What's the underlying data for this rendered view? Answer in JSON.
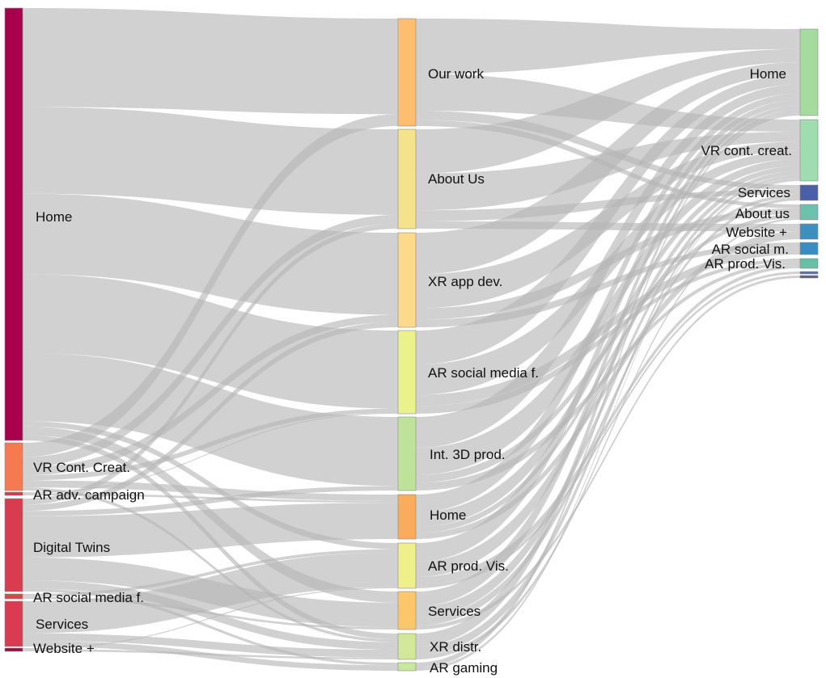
{
  "chart_data": {
    "type": "sankey",
    "nodes": [
      {
        "id": "s_home",
        "label": "Home",
        "column": 0,
        "color": "#a8004a"
      },
      {
        "id": "s_vrcc",
        "label": "VR Cont. Creat.",
        "column": 0,
        "color": "#f57a4f"
      },
      {
        "id": "s_aradv",
        "label": "AR adv. campaign",
        "column": 0,
        "color": "#d9364b"
      },
      {
        "id": "s_dt",
        "label": "Digital Twins",
        "column": 0,
        "color": "#d93b4f"
      },
      {
        "id": "s_arsm",
        "label": "AR social media f.",
        "column": 0,
        "color": "#d64a44"
      },
      {
        "id": "s_serv",
        "label": "Services",
        "column": 0,
        "color": "#da3b52"
      },
      {
        "id": "s_web",
        "label": "Website +",
        "column": 0,
        "color": "#9c0a43"
      },
      {
        "id": "m_work",
        "label": "Our work",
        "column": 1,
        "color": "#fdbf6f"
      },
      {
        "id": "m_about",
        "label": "About Us",
        "column": 1,
        "color": "#f5e38c"
      },
      {
        "id": "m_xrapp",
        "label": "XR app dev.",
        "column": 1,
        "color": "#fdd98c"
      },
      {
        "id": "m_arsm",
        "label": "AR social media f.",
        "column": 1,
        "color": "#eaf28c"
      },
      {
        "id": "m_int3d",
        "label": "Int. 3D prod.",
        "column": 1,
        "color": "#bfe29a"
      },
      {
        "id": "m_home",
        "label": "Home",
        "column": 1,
        "color": "#fbab5c"
      },
      {
        "id": "m_arprod",
        "label": "AR prod. Vis.",
        "column": 1,
        "color": "#eff08a"
      },
      {
        "id": "m_serv",
        "label": "Services",
        "column": 1,
        "color": "#fcc66a"
      },
      {
        "id": "m_xrdist",
        "label": "XR distr.",
        "column": 1,
        "color": "#d3e99a"
      },
      {
        "id": "m_argame",
        "label": "AR gaming",
        "column": 1,
        "color": "#c7e79a"
      },
      {
        "id": "t_home",
        "label": "Home",
        "column": 2,
        "color": "#a6dba0"
      },
      {
        "id": "t_vrcc",
        "label": "VR cont. creat.",
        "column": 2,
        "color": "#9fdcb0"
      },
      {
        "id": "t_serv",
        "label": "Services",
        "column": 2,
        "color": "#4b5ea8"
      },
      {
        "id": "t_about",
        "label": "About us",
        "column": 2,
        "color": "#6cc0ad"
      },
      {
        "id": "t_web",
        "label": "Website +",
        "column": 2,
        "color": "#3d8fbf"
      },
      {
        "id": "t_arsm",
        "label": "AR social m.",
        "column": 2,
        "color": "#3b8cc2"
      },
      {
        "id": "t_arprod",
        "label": "AR prod. Vis.",
        "column": 2,
        "color": "#69bfa5"
      },
      {
        "id": "t_x1",
        "label": "",
        "column": 2,
        "color": "#5e6da8"
      },
      {
        "id": "t_x2",
        "label": "",
        "column": 2,
        "color": "#5b5b8a"
      }
    ],
    "links": [
      {
        "source": "s_home",
        "target": "m_work",
        "value": 113
      },
      {
        "source": "s_home",
        "target": "m_about",
        "value": 99
      },
      {
        "source": "s_home",
        "target": "m_xrapp",
        "value": 92
      },
      {
        "source": "s_home",
        "target": "m_arsm",
        "value": 90
      },
      {
        "source": "s_home",
        "target": "m_int3d",
        "value": 78
      },
      {
        "source": "s_home",
        "target": "m_serv",
        "value": 10
      },
      {
        "source": "s_home",
        "target": "m_arprod",
        "value": 6
      },
      {
        "source": "s_home",
        "target": "m_xrdist",
        "value": 6
      },
      {
        "source": "s_vrcc",
        "target": "m_work",
        "value": 14
      },
      {
        "source": "s_vrcc",
        "target": "m_about",
        "value": 10
      },
      {
        "source": "s_vrcc",
        "target": "m_xrapp",
        "value": 8
      },
      {
        "source": "s_vrcc",
        "target": "m_arsm",
        "value": 5
      },
      {
        "source": "s_vrcc",
        "target": "m_home",
        "value": 7
      },
      {
        "source": "s_vrcc",
        "target": "m_xrdist",
        "value": 3
      },
      {
        "source": "s_aradv",
        "target": "m_home",
        "value": 2
      },
      {
        "source": "s_aradv",
        "target": "m_arsm",
        "value": 1
      },
      {
        "source": "s_dt",
        "target": "m_home",
        "value": 40
      },
      {
        "source": "s_dt",
        "target": "m_serv",
        "value": 22
      },
      {
        "source": "s_dt",
        "target": "m_xrapp",
        "value": 6
      },
      {
        "source": "s_dt",
        "target": "m_int3d",
        "value": 5
      },
      {
        "source": "s_dt",
        "target": "m_about",
        "value": 6
      },
      {
        "source": "s_dt",
        "target": "m_xrdist",
        "value": 8
      },
      {
        "source": "s_dt",
        "target": "m_argame",
        "value": 3
      },
      {
        "source": "s_arsm",
        "target": "m_arprod",
        "value": 3
      },
      {
        "source": "s_arsm",
        "target": "m_serv",
        "value": 2
      },
      {
        "source": "s_serv",
        "target": "m_arprod",
        "value": 34
      },
      {
        "source": "s_serv",
        "target": "m_xrdist",
        "value": 8
      },
      {
        "source": "s_serv",
        "target": "m_argame",
        "value": 6
      },
      {
        "source": "s_web",
        "target": "m_xrdist",
        "value": 2
      },
      {
        "source": "s_web",
        "target": "m_arprod",
        "value": 1
      },
      {
        "source": "m_work",
        "target": "t_home",
        "value": 18
      },
      {
        "source": "m_work",
        "target": "t_vrcc",
        "value": 12
      },
      {
        "source": "m_work",
        "target": "t_serv",
        "value": 3
      },
      {
        "source": "m_work",
        "target": "t_about",
        "value": 2
      },
      {
        "source": "m_about",
        "target": "t_home",
        "value": 12
      },
      {
        "source": "m_about",
        "target": "t_vrcc",
        "value": 10
      },
      {
        "source": "m_about",
        "target": "t_serv",
        "value": 3
      },
      {
        "source": "m_about",
        "target": "t_web",
        "value": 2
      },
      {
        "source": "m_xrapp",
        "target": "t_home",
        "value": 11
      },
      {
        "source": "m_xrapp",
        "target": "t_vrcc",
        "value": 9
      },
      {
        "source": "m_xrapp",
        "target": "t_about",
        "value": 3
      },
      {
        "source": "m_xrapp",
        "target": "t_arsm",
        "value": 2
      },
      {
        "source": "m_arsm",
        "target": "t_home",
        "value": 9
      },
      {
        "source": "m_arsm",
        "target": "t_vrcc",
        "value": 8
      },
      {
        "source": "m_arsm",
        "target": "t_arsm",
        "value": 3
      },
      {
        "source": "m_arsm",
        "target": "t_arprod",
        "value": 2
      },
      {
        "source": "m_int3d",
        "target": "t_home",
        "value": 8
      },
      {
        "source": "m_int3d",
        "target": "t_vrcc",
        "value": 7
      },
      {
        "source": "m_int3d",
        "target": "t_about",
        "value": 2
      },
      {
        "source": "m_int3d",
        "target": "t_arprod",
        "value": 2
      },
      {
        "source": "m_home",
        "target": "t_home",
        "value": 6
      },
      {
        "source": "m_home",
        "target": "t_vrcc",
        "value": 5
      },
      {
        "source": "m_home",
        "target": "t_serv",
        "value": 2
      },
      {
        "source": "m_home",
        "target": "t_web",
        "value": 2
      },
      {
        "source": "m_arprod",
        "target": "t_home",
        "value": 5
      },
      {
        "source": "m_arprod",
        "target": "t_vrcc",
        "value": 4
      },
      {
        "source": "m_arprod",
        "target": "t_arprod",
        "value": 2
      },
      {
        "source": "m_arprod",
        "target": "t_x1",
        "value": 1
      },
      {
        "source": "m_serv",
        "target": "t_home",
        "value": 4
      },
      {
        "source": "m_serv",
        "target": "t_vrcc",
        "value": 3
      },
      {
        "source": "m_serv",
        "target": "t_serv",
        "value": 2
      },
      {
        "source": "m_serv",
        "target": "t_x2",
        "value": 1
      },
      {
        "source": "m_xrdist",
        "target": "t_home",
        "value": 3
      },
      {
        "source": "m_xrdist",
        "target": "t_vrcc",
        "value": 2
      },
      {
        "source": "m_xrdist",
        "target": "t_about",
        "value": 1
      },
      {
        "source": "m_argame",
        "target": "t_home",
        "value": 2
      },
      {
        "source": "m_argame",
        "target": "t_vrcc",
        "value": 1
      }
    ]
  }
}
